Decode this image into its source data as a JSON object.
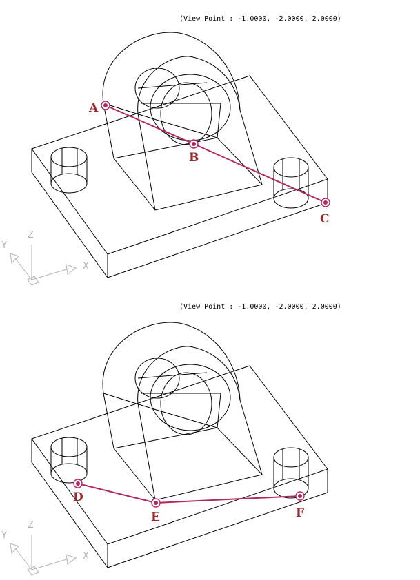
{
  "panels": [
    {
      "view_point": "(View Point : -1.0000, -2.0000, 2.0000)",
      "axes": {
        "x": "X",
        "y": "Y",
        "z": "Z"
      },
      "points": [
        {
          "label": "A"
        },
        {
          "label": "B"
        },
        {
          "label": "C"
        }
      ]
    },
    {
      "view_point": "(View Point : -1.0000, -2.0000, 2.0000)",
      "axes": {
        "x": "X",
        "y": "Y",
        "z": "Z"
      },
      "points": [
        {
          "label": "D"
        },
        {
          "label": "E"
        },
        {
          "label": "F"
        }
      ]
    }
  ],
  "colors": {
    "path": "#b3265f",
    "label": "#9c2a2a",
    "wireframe": "#000000",
    "ucs_icon": "#b4b4b4"
  }
}
